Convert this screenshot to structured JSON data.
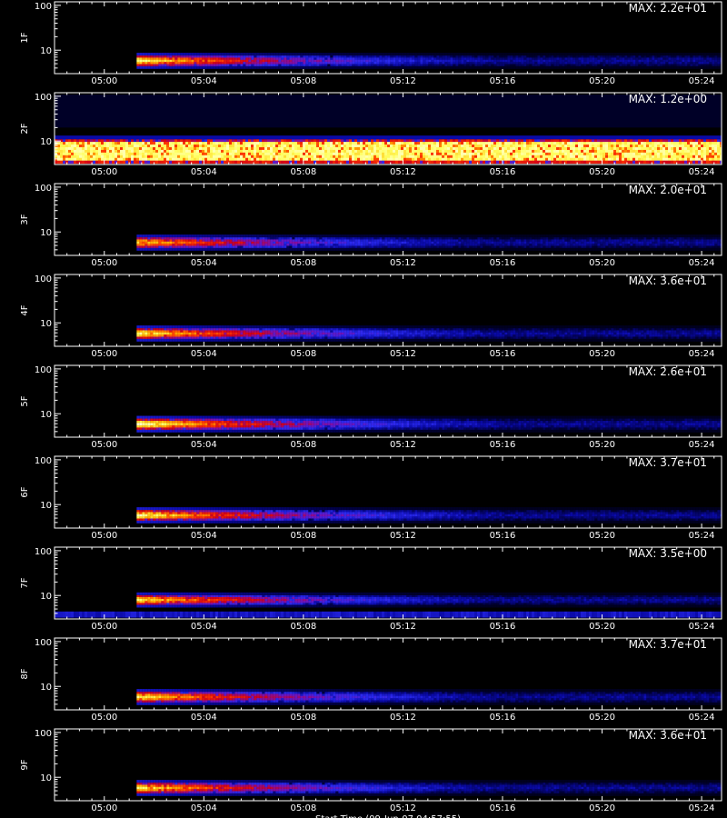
{
  "chart_data": {
    "type": "heatmap",
    "x_tick_labels": [
      "05:00",
      "05:04",
      "05:08",
      "05:12",
      "05:16",
      "05:20",
      "05:24"
    ],
    "x_tick_minutes": [
      0,
      4,
      8,
      12,
      16,
      20,
      24
    ],
    "x_range_minutes": [
      -2,
      24.8
    ],
    "x_axis_title": "Start Time (09-Jun-07 04:57:55)",
    "y_scale": "log",
    "y_range": [
      3,
      120
    ],
    "y_tick_values": [
      10,
      100
    ],
    "y_tick_labels": [
      "10",
      "100"
    ],
    "colormap": [
      "#000000",
      "#00003c",
      "#0a0aa8",
      "#2a2af0",
      "#7a10b0",
      "#d00018",
      "#ff3a00",
      "#ffb000",
      "#ffff60",
      "#ffffe6"
    ],
    "panels": [
      {
        "name": "1F",
        "max_label": "MAX: 2.2e+01",
        "kind": "decay",
        "onset_minute": 1.3,
        "band": [
          4.4,
          7.6
        ],
        "peak_intensity": 0.92
      },
      {
        "name": "2F",
        "max_label": "MAX: 1.2e+00",
        "kind": "continuous",
        "band": [
          3.2,
          11
        ],
        "peak_intensity": 0.9
      },
      {
        "name": "3F",
        "max_label": "MAX: 2.0e+01",
        "kind": "decay",
        "onset_minute": 1.3,
        "band": [
          4.4,
          7.6
        ],
        "peak_intensity": 0.85
      },
      {
        "name": "4F",
        "max_label": "MAX: 3.6e+01",
        "kind": "decay",
        "onset_minute": 1.3,
        "band": [
          4.4,
          7.6
        ],
        "peak_intensity": 0.92
      },
      {
        "name": "5F",
        "max_label": "MAX: 2.6e+01",
        "kind": "decay",
        "onset_minute": 1.3,
        "band": [
          4.4,
          7.8
        ],
        "peak_intensity": 0.97
      },
      {
        "name": "6F",
        "max_label": "MAX: 3.7e+01",
        "kind": "decay",
        "onset_minute": 1.3,
        "band": [
          4.4,
          7.6
        ],
        "peak_intensity": 0.95
      },
      {
        "name": "7F",
        "max_label": "MAX: 3.5e+00",
        "kind": "decay_with_floor",
        "onset_minute": 1.3,
        "band": [
          6.2,
          10.2
        ],
        "floor_band": [
          3.2,
          4.4
        ],
        "peak_intensity": 0.9
      },
      {
        "name": "8F",
        "max_label": "MAX: 3.7e+01",
        "kind": "decay",
        "onset_minute": 1.3,
        "band": [
          4.4,
          7.6
        ],
        "peak_intensity": 0.9
      },
      {
        "name": "9F",
        "max_label": "MAX: 3.6e+01",
        "kind": "decay",
        "onset_minute": 1.3,
        "band": [
          4.4,
          7.6
        ],
        "peak_intensity": 0.9
      }
    ]
  }
}
